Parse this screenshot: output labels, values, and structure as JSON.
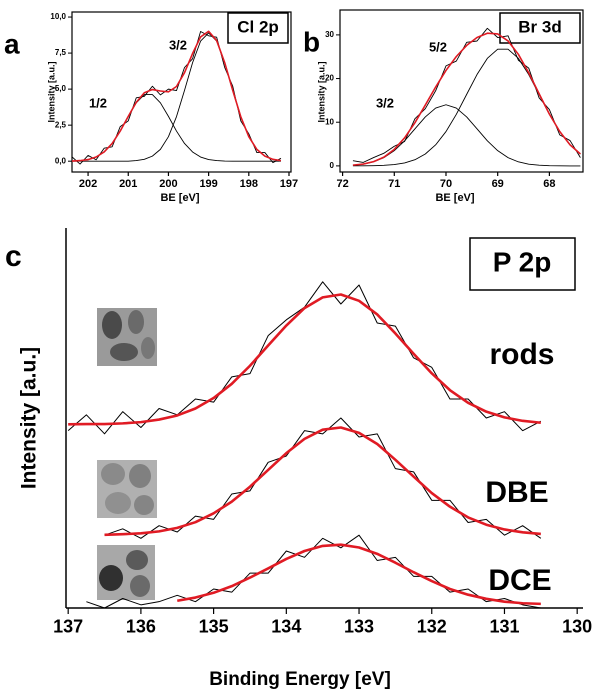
{
  "chart_data": [
    {
      "type": "line",
      "panel": "a",
      "title": "Cl 2p",
      "xlabel": "BE [eV]",
      "ylabel": "Intensity [a.u.]",
      "x": [
        202.4,
        202.2,
        202.0,
        201.8,
        201.6,
        201.4,
        201.2,
        201.0,
        200.8,
        200.6,
        200.4,
        200.2,
        200.0,
        199.8,
        199.6,
        199.4,
        199.2,
        199.0,
        198.8,
        198.6,
        198.4,
        198.2,
        198.0,
        197.8,
        197.6,
        197.4,
        197.2
      ],
      "xlim": [
        202.4,
        196.95
      ],
      "xticks": [
        202,
        201,
        200,
        199,
        198,
        197
      ],
      "ylim": [
        -0.75,
        10.35
      ],
      "yticks": [
        {
          "value": 0,
          "label": "0,0"
        },
        {
          "value": 2.5,
          "label": "2,5"
        },
        {
          "value": 5,
          "label": "5,0"
        },
        {
          "value": 7.5,
          "label": "7,5"
        },
        {
          "value": 10,
          "label": "10,0"
        }
      ],
      "data": [
        0.3,
        -0.2,
        0.4,
        0.1,
        0.9,
        1.0,
        2.4,
        2.8,
        4.4,
        4.5,
        5.2,
        4.6,
        5.0,
        4.9,
        6.5,
        7.1,
        9.0,
        8.7,
        8.6,
        6.5,
        5.2,
        2.8,
        1.9,
        0.6,
        0.6,
        -0.1,
        0.2
      ],
      "data_color": "#000000",
      "fit": [
        0.01,
        0.04,
        0.11,
        0.29,
        0.64,
        1.23,
        2.09,
        3.11,
        4.09,
        4.75,
        4.97,
        4.87,
        4.81,
        5.18,
        6.14,
        7.47,
        8.62,
        9.01,
        8.37,
        6.84,
        4.91,
        3.09,
        1.7,
        0.82,
        0.35,
        0.13,
        0.04
      ],
      "fit_color": "#e01b24",
      "components": [
        {
          "label": "1/2",
          "values": [
            0.01,
            0.04,
            0.11,
            0.29,
            0.64,
            1.23,
            2.09,
            3.11,
            4.05,
            4.62,
            4.62,
            4.05,
            3.11,
            2.09,
            1.23,
            0.64,
            0.29,
            0.11,
            0.04,
            0.01,
            0,
            0,
            0,
            0,
            0,
            0,
            0
          ]
        },
        {
          "label": "3/2",
          "values": [
            0,
            0,
            0,
            0,
            0,
            0,
            0,
            0,
            0.04,
            0.13,
            0.35,
            0.82,
            1.7,
            3.09,
            4.91,
            6.83,
            8.33,
            8.9,
            8.33,
            6.83,
            4.91,
            3.09,
            1.7,
            0.82,
            0.35,
            0.13,
            0.04
          ]
        }
      ],
      "component_color": "#000000"
    },
    {
      "type": "line",
      "panel": "b",
      "title": "Br 3d",
      "xlabel": "BE [eV]",
      "ylabel": "Intensity [a.u.]",
      "x": [
        71.8,
        71.6,
        71.4,
        71.2,
        71.0,
        70.8,
        70.6,
        70.4,
        70.2,
        70.0,
        69.8,
        69.6,
        69.4,
        69.2,
        69.0,
        68.8,
        68.6,
        68.4,
        68.2,
        68.0,
        67.8,
        67.6,
        67.4
      ],
      "xlim": [
        72.05,
        67.35
      ],
      "xticks": [
        72,
        71,
        70,
        69,
        68
      ],
      "ylim": [
        -1.4,
        35.7
      ],
      "yticks": [
        0,
        10,
        20,
        30
      ],
      "data": [
        1.2,
        0.8,
        1.9,
        2.9,
        4.5,
        5.6,
        10.8,
        13.1,
        17.2,
        22.9,
        24.0,
        28.3,
        28.6,
        31.5,
        29.4,
        29.8,
        24.2,
        22.4,
        15.6,
        12.9,
        7.1,
        5.8,
        1.9
      ],
      "data_color": "#000000",
      "fit": [
        0.17,
        0.42,
        0.97,
        2.01,
        3.79,
        6.43,
        9.9,
        13.93,
        18.06,
        21.86,
        25.05,
        27.59,
        29.41,
        30.38,
        30.22,
        28.62,
        25.55,
        21.32,
        16.54,
        11.86,
        7.87,
        4.82,
        2.72
      ],
      "fit_color": "#e01b24",
      "components": [
        {
          "label": "3/2",
          "values": [
            0.16,
            0.4,
            0.92,
            1.89,
            3.49,
            5.75,
            8.49,
            11.21,
            13.24,
            14,
            13.24,
            11.21,
            8.49,
            5.75,
            3.49,
            1.89,
            0.92,
            0.4,
            0.16,
            0.05,
            0.01,
            0,
            0
          ]
        },
        {
          "label": "5/2",
          "values": [
            0.01,
            0.02,
            0.05,
            0.12,
            0.3,
            0.68,
            1.41,
            2.72,
            4.82,
            7.86,
            11.81,
            16.38,
            20.92,
            24.63,
            26.73,
            26.73,
            24.63,
            20.92,
            16.38,
            11.81,
            7.86,
            4.82,
            2.72
          ]
        }
      ],
      "component_color": "#000000"
    },
    {
      "type": "line",
      "panel": "c",
      "title": "P 2p",
      "xlabel": "Binding Energy [eV]",
      "ylabel": "Intensity [a.u.]",
      "x": [
        137.0,
        136.75,
        136.5,
        136.25,
        136.0,
        135.75,
        135.5,
        135.25,
        135.0,
        134.75,
        134.5,
        134.25,
        134.0,
        133.75,
        133.5,
        133.25,
        133.0,
        132.75,
        132.5,
        132.25,
        132.0,
        131.75,
        131.5,
        131.25,
        131.0,
        130.75,
        130.5
      ],
      "xlim": [
        137.03,
        129.92
      ],
      "xticks": [
        137,
        136,
        135,
        134,
        133,
        132,
        131,
        130
      ],
      "ylim": [
        0,
        12
      ],
      "data_color": "#000000",
      "fit_color": "#e01b24",
      "series": [
        {
          "name": "rods",
          "data": [
            5.6,
            6.1,
            5.5,
            6.2,
            5.7,
            6.3,
            6.1,
            6.6,
            6.5,
            7.3,
            7.4,
            8.6,
            9.1,
            9.5,
            10.3,
            9.6,
            10.2,
            9.0,
            8.9,
            7.9,
            7.6,
            6.6,
            6.6,
            6.0,
            6.2,
            5.6,
            5.9
          ],
          "fit": [
            5.8,
            5.81,
            5.81,
            5.83,
            5.87,
            5.95,
            6.08,
            6.3,
            6.63,
            7.08,
            7.65,
            8.29,
            8.92,
            9.47,
            9.81,
            9.9,
            9.7,
            9.27,
            8.67,
            8.03,
            7.41,
            6.88,
            6.48,
            6.2,
            6.02,
            5.91,
            5.85
          ]
        },
        {
          "name": "DBE",
          "data": [
            null,
            null,
            2.3,
            2.5,
            2.2,
            2.6,
            2.4,
            2.9,
            2.8,
            3.6,
            3.7,
            4.6,
            4.8,
            5.6,
            5.5,
            6.0,
            5.4,
            5.5,
            4.4,
            4.3,
            3.4,
            3.4,
            2.7,
            2.8,
            2.3,
            2.6,
            2.2
          ],
          "fit": [
            null,
            null,
            2.31,
            2.33,
            2.36,
            2.42,
            2.53,
            2.71,
            2.99,
            3.36,
            3.83,
            4.36,
            4.89,
            5.34,
            5.63,
            5.7,
            5.53,
            5.18,
            4.68,
            4.15,
            3.63,
            3.2,
            2.86,
            2.63,
            2.48,
            2.39,
            2.34
          ]
        },
        {
          "name": "DCE",
          "data": [
            null,
            0.2,
            0.0,
            0.3,
            0.1,
            0.2,
            0.4,
            0.2,
            0.6,
            0.5,
            1.1,
            1.1,
            1.8,
            1.6,
            2.2,
            1.9,
            2.3,
            1.5,
            1.6,
            1.0,
            1.0,
            0.5,
            0.6,
            0.2,
            0.3,
            0.1,
            0.0
          ],
          "fit": [
            null,
            null,
            null,
            null,
            null,
            null,
            0.23,
            0.33,
            0.48,
            0.69,
            0.96,
            1.25,
            1.55,
            1.8,
            1.96,
            2.0,
            1.91,
            1.71,
            1.43,
            1.13,
            0.85,
            0.6,
            0.42,
            0.29,
            0.2,
            0.15,
            0.13
          ]
        }
      ]
    }
  ]
}
